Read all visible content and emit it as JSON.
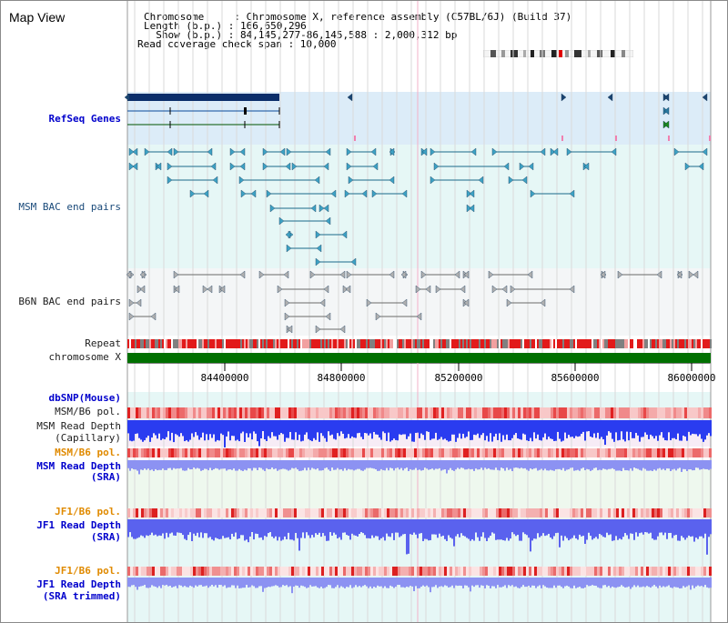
{
  "title": "Map View",
  "info": {
    "line1": "Chromosome     : Chromosome X, reference assembly (C57BL/6J) (Build 37)",
    "line2": "Length (b.p.) : 166,650,296",
    "line3": "  Show (b.p.) : 84,145,277-86,145,588 : 2,000,312 bp",
    "line4": "Read coverage check span : 10,000"
  },
  "tracks": {
    "refseq": "RefSeq Genes",
    "msm_bac": "MSM BAC end pairs",
    "b6n_bac": "B6N BAC end pairs",
    "repeat": "Repeat",
    "chromosome": "chromosome X",
    "dbsnp": "dbSNP(Mouse)",
    "msm_b6_pol_1": "MSM/B6 pol.",
    "msm_depth_cap_1": "MSM Read Depth",
    "msm_depth_cap_2": "(Capillary)",
    "msm_b6_pol_2": "MSM/B6 pol.",
    "msm_depth_sra_1": "MSM Read Depth",
    "msm_depth_sra_2": "(SRA)",
    "jf1_b6_pol_1": "JF1/B6 pol.",
    "jf1_depth_sra_1": "JF1 Read Depth",
    "jf1_depth_sra_2": "(SRA)",
    "jf1_b6_pol_2": "JF1/B6 pol.",
    "jf1_depth_trim_1": "JF1 Read Depth",
    "jf1_depth_trim_2": "(SRA trimmed)"
  },
  "axis": {
    "ticks": [
      "84400000",
      "84800000",
      "85200000",
      "85600000",
      "86000000"
    ]
  },
  "colors": {
    "refseq_bg": "#dcecf8",
    "bac_bg": "#e6f7f6",
    "b6n_bg": "#f4f6f7",
    "chromosome_bar": "#007000",
    "repeat_red": "#e21a1a",
    "depth_blue": "#2a3cf0",
    "depth_light": "#8c92f2",
    "gene_dark": "#0a2e6a"
  }
}
